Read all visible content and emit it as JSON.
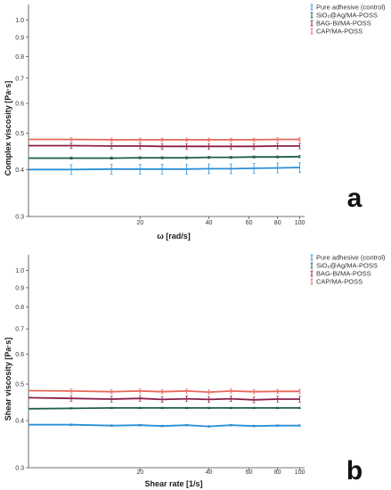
{
  "chart_data": [
    {
      "type": "line",
      "panel_label": "a",
      "xlabel": "ω [rad/s]",
      "ylabel": "Complex viscosity [Pa·s]",
      "xscale": "log",
      "yscale": "log",
      "xlim": [
        6.5,
        105
      ],
      "ylim": [
        0.3,
        1.1
      ],
      "xticks": [
        20,
        40,
        60,
        80,
        100
      ],
      "yticks": [
        0.3,
        0.4,
        0.5,
        0.6,
        0.7,
        0.8,
        0.9,
        1.0
      ],
      "ytick_labels": [
        "0.3",
        "0.4",
        "0.5",
        "0.6",
        "0.7",
        "0.8",
        "0.9",
        "1.0"
      ],
      "grid": false,
      "legend_position": "top-right",
      "x": [
        6.5,
        10,
        15,
        20,
        25,
        32,
        40,
        50,
        63,
        80,
        100
      ],
      "series": [
        {
          "name": "Pure adhesive (control)",
          "color": "#2a8fd6",
          "values": [
            0.4,
            0.4,
            0.401,
            0.401,
            0.401,
            0.401,
            0.402,
            0.402,
            0.403,
            0.404,
            0.405
          ],
          "error": [
            0.012,
            0.012,
            0.012,
            0.012,
            0.012,
            0.012,
            0.012,
            0.012,
            0.012,
            0.012,
            0.012
          ]
        },
        {
          "name": "SiO₂@Ag/MA-POSS",
          "color": "#1f5f4a",
          "values": [
            0.429,
            0.429,
            0.429,
            0.43,
            0.43,
            0.43,
            0.431,
            0.431,
            0.432,
            0.432,
            0.433
          ],
          "error": [
            0.003,
            0.003,
            0.003,
            0.003,
            0.003,
            0.003,
            0.003,
            0.003,
            0.003,
            0.003,
            0.003
          ]
        },
        {
          "name": "BAG-Bi/MA-POSS",
          "color": "#8a1f4a",
          "values": [
            0.463,
            0.463,
            0.462,
            0.462,
            0.461,
            0.461,
            0.461,
            0.461,
            0.461,
            0.462,
            0.462
          ],
          "error": [
            0.008,
            0.008,
            0.008,
            0.008,
            0.008,
            0.008,
            0.008,
            0.008,
            0.008,
            0.008,
            0.008
          ]
        },
        {
          "name": "CAP/MA-POSS",
          "color": "#e8675a",
          "values": [
            0.481,
            0.481,
            0.48,
            0.48,
            0.48,
            0.48,
            0.48,
            0.48,
            0.48,
            0.481,
            0.481
          ],
          "error": [
            0.005,
            0.005,
            0.005,
            0.005,
            0.005,
            0.005,
            0.005,
            0.005,
            0.005,
            0.005,
            0.005
          ]
        }
      ]
    },
    {
      "type": "line",
      "panel_label": "b",
      "xlabel": "Shear rate [1/s]",
      "ylabel": "Shear viscosity [Pa·s]",
      "xscale": "log",
      "yscale": "log",
      "xlim": [
        6.5,
        105
      ],
      "ylim": [
        0.3,
        1.1
      ],
      "xticks": [
        20,
        40,
        60,
        80,
        100
      ],
      "yticks": [
        0.3,
        0.4,
        0.5,
        0.6,
        0.7,
        0.8,
        0.9,
        1.0
      ],
      "ytick_labels": [
        "0.3",
        "0.4",
        "0.5",
        "0.6",
        "0.7",
        "0.8",
        "0.9",
        "1.0"
      ],
      "grid": false,
      "legend_position": "top-right",
      "x": [
        6.5,
        10,
        15,
        20,
        25,
        32,
        40,
        50,
        63,
        80,
        100
      ],
      "series": [
        {
          "name": "Pure adhesive (control)",
          "color": "#2a8fd6",
          "values": [
            0.39,
            0.39,
            0.388,
            0.389,
            0.387,
            0.389,
            0.386,
            0.389,
            0.387,
            0.388,
            0.388
          ],
          "error": [
            0.002,
            0.002,
            0.002,
            0.002,
            0.002,
            0.002,
            0.002,
            0.002,
            0.002,
            0.002,
            0.002
          ]
        },
        {
          "name": "SiO₂@Ag/MA-POSS",
          "color": "#1f5f4a",
          "values": [
            0.43,
            0.431,
            0.432,
            0.432,
            0.432,
            0.432,
            0.432,
            0.432,
            0.432,
            0.432,
            0.432
          ],
          "error": [
            0.002,
            0.002,
            0.002,
            0.002,
            0.002,
            0.002,
            0.002,
            0.002,
            0.002,
            0.002,
            0.002
          ]
        },
        {
          "name": "BAG-Bi/MA-POSS",
          "color": "#8a1f4a",
          "values": [
            0.46,
            0.458,
            0.456,
            0.458,
            0.455,
            0.457,
            0.455,
            0.457,
            0.454,
            0.456,
            0.456
          ],
          "error": [
            0.008,
            0.008,
            0.008,
            0.008,
            0.008,
            0.008,
            0.008,
            0.008,
            0.008,
            0.008,
            0.008
          ]
        },
        {
          "name": "CAP/MA-POSS",
          "color": "#e8675a",
          "values": [
            0.48,
            0.479,
            0.477,
            0.479,
            0.477,
            0.479,
            0.476,
            0.479,
            0.477,
            0.478,
            0.478
          ],
          "error": [
            0.006,
            0.006,
            0.006,
            0.006,
            0.006,
            0.006,
            0.006,
            0.006,
            0.006,
            0.006,
            0.006
          ]
        }
      ]
    }
  ]
}
